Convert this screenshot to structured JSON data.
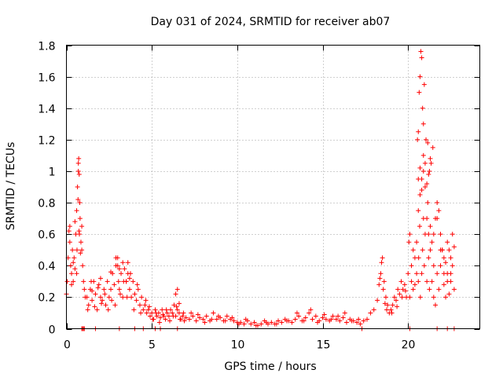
{
  "chart_data": {
    "type": "scatter",
    "title": "Day 031 of 2024, SRMTID for receiver ab07",
    "xlabel": "GPS time / hours",
    "ylabel": "SRMTID / TECUs",
    "xlim": [
      0,
      24.2
    ],
    "ylim": [
      0,
      1.8
    ],
    "xticks": [
      0,
      5,
      10,
      15,
      20
    ],
    "xtick_labels": [
      "0",
      "5",
      "10",
      "15",
      "20"
    ],
    "yticks": [
      0,
      0.2,
      0.4,
      0.6,
      0.8,
      1.0,
      1.2,
      1.4,
      1.6,
      1.8
    ],
    "ytick_labels": [
      "0",
      "0.2",
      "0.4",
      "0.6",
      "0.8",
      "1",
      "1.2",
      "1.4",
      "1.6",
      "1.8"
    ],
    "grid": true,
    "marker": "+",
    "color": "#ff0000",
    "series": [
      {
        "name": "SRMTID",
        "x": [
          0.0,
          0.05,
          0.1,
          0.15,
          0.2,
          0.25,
          0.3,
          0.35,
          0.4,
          0.45,
          0.5,
          0.55,
          0.6,
          0.65,
          0.7,
          0.72,
          0.75,
          0.78,
          0.8,
          0.85,
          0.9,
          0.95,
          1.0,
          1.05,
          1.1,
          0.2,
          0.4,
          0.6,
          0.68,
          0.74,
          0.82,
          0.9,
          0.3,
          0.5,
          0.62,
          0.7,
          0.76,
          1.2,
          1.3,
          1.4,
          1.5,
          1.6,
          1.7,
          1.8,
          1.9,
          2.0,
          2.1,
          2.2,
          2.3,
          2.4,
          2.5,
          2.6,
          2.7,
          2.8,
          2.9,
          3.0,
          3.05,
          3.1,
          3.2,
          3.3,
          3.4,
          3.5,
          3.6,
          3.7,
          3.8,
          3.9,
          4.0,
          4.1,
          4.2,
          4.3,
          4.4,
          4.5,
          1.25,
          1.45,
          1.65,
          1.85,
          2.05,
          2.25,
          2.45,
          2.65,
          2.85,
          3.15,
          3.35,
          3.55,
          3.75,
          3.95,
          4.15,
          4.35,
          2.9,
          3.0,
          3.1,
          3.3,
          3.5,
          3.6,
          3.7,
          1.5,
          2.0,
          2.6,
          4.6,
          4.7,
          4.8,
          4.9,
          5.0,
          5.1,
          5.2,
          5.3,
          5.4,
          5.5,
          5.6,
          5.7,
          5.8,
          5.9,
          6.0,
          6.1,
          6.2,
          6.3,
          6.4,
          6.5,
          6.6,
          6.7,
          6.8,
          6.9,
          7.0,
          4.65,
          4.85,
          5.05,
          5.25,
          5.45,
          5.65,
          5.85,
          6.05,
          6.25,
          6.45,
          6.65,
          6.85,
          6.5,
          6.4,
          6.6,
          7.2,
          7.4,
          7.6,
          7.8,
          8.0,
          8.2,
          8.4,
          8.6,
          8.8,
          9.0,
          9.2,
          9.4,
          9.6,
          9.8,
          10.0,
          7.3,
          7.7,
          8.1,
          8.5,
          8.9,
          9.3,
          9.7,
          10.1,
          10.2,
          10.4,
          10.6,
          10.8,
          11.0,
          11.2,
          11.4,
          11.6,
          11.8,
          12.0,
          12.2,
          12.4,
          12.6,
          12.8,
          13.0,
          13.2,
          10.5,
          11.1,
          11.7,
          12.3,
          12.9,
          13.4,
          13.6,
          13.8,
          14.0,
          14.2,
          14.4,
          14.6,
          14.8,
          15.0,
          15.2,
          15.4,
          15.6,
          15.8,
          16.0,
          16.2,
          16.4,
          16.6,
          16.8,
          17.0,
          17.2,
          13.5,
          13.9,
          14.3,
          14.7,
          15.1,
          15.5,
          15.9,
          16.3,
          16.7,
          17.1,
          17.4,
          17.6,
          17.8,
          18.0,
          18.2,
          18.3,
          18.4,
          18.5,
          18.6,
          18.7,
          18.8,
          18.9,
          19.0,
          19.1,
          19.2,
          19.3,
          19.4,
          19.5,
          19.6,
          19.7,
          19.8,
          19.9,
          18.35,
          18.45,
          18.55,
          18.65,
          18.75,
          19.05,
          19.35,
          19.65,
          19.85,
          20.0,
          20.05,
          20.1,
          20.2,
          20.3,
          20.4,
          20.5,
          20.6,
          20.7,
          20.8,
          20.9,
          21.0,
          21.1,
          21.2,
          21.3,
          21.4,
          21.5,
          21.6,
          21.7,
          21.8,
          21.9,
          22.0,
          22.1,
          22.2,
          22.3,
          22.4,
          22.5,
          22.6,
          22.7,
          20.55,
          20.6,
          20.65,
          20.7,
          20.75,
          20.8,
          20.85,
          20.9,
          20.95,
          21.05,
          21.15,
          21.25,
          21.35,
          21.45,
          20.6,
          20.7,
          20.8,
          20.9,
          21.0,
          21.1,
          21.2,
          21.3,
          20.6,
          20.62,
          20.68,
          20.72,
          20.8,
          20.85,
          20.9,
          20.95,
          21.0,
          21.1,
          21.15,
          21.2,
          21.25,
          21.3,
          21.4,
          21.5,
          21.6,
          21.7,
          21.8,
          21.9,
          22.0,
          22.1,
          22.2,
          22.3,
          22.4,
          22.5,
          22.6,
          20.1,
          20.2,
          20.3,
          20.4,
          20.5,
          21.5,
          21.7,
          21.9,
          22.1,
          22.3,
          22.5,
          22.7,
          0.9,
          0.95,
          1.0,
          1.05,
          1.7,
          3.1,
          4.0,
          4.5,
          5.2,
          5.5,
          6.5,
          17.3,
          20.1,
          21.7,
          22.3,
          22.7
        ],
        "y": [
          0.22,
          0.3,
          0.45,
          0.62,
          0.55,
          0.4,
          0.35,
          0.5,
          0.3,
          0.45,
          0.68,
          0.6,
          0.75,
          0.9,
          1.05,
          1.08,
          0.98,
          0.8,
          0.7,
          0.55,
          0.5,
          0.4,
          0.3,
          0.25,
          0.2,
          0.65,
          0.42,
          0.35,
          0.82,
          0.62,
          0.48,
          0.65,
          0.28,
          0.38,
          0.5,
          1.0,
          0.6,
          0.2,
          0.15,
          0.25,
          0.18,
          0.3,
          0.22,
          0.12,
          0.28,
          0.2,
          0.18,
          0.25,
          0.15,
          0.3,
          0.2,
          0.25,
          0.35,
          0.28,
          0.4,
          0.45,
          0.3,
          0.25,
          0.35,
          0.2,
          0.38,
          0.3,
          0.42,
          0.25,
          0.2,
          0.3,
          0.22,
          0.18,
          0.25,
          0.15,
          0.2,
          0.12,
          0.12,
          0.3,
          0.14,
          0.26,
          0.16,
          0.22,
          0.12,
          0.18,
          0.15,
          0.22,
          0.3,
          0.2,
          0.35,
          0.12,
          0.28,
          0.1,
          0.45,
          0.4,
          0.38,
          0.42,
          0.3,
          0.35,
          0.32,
          0.24,
          0.32,
          0.36,
          0.15,
          0.1,
          0.12,
          0.08,
          0.1,
          0.06,
          0.12,
          0.08,
          0.1,
          0.07,
          0.12,
          0.08,
          0.06,
          0.1,
          0.08,
          0.12,
          0.1,
          0.15,
          0.08,
          0.12,
          0.1,
          0.06,
          0.08,
          0.05,
          0.07,
          0.18,
          0.14,
          0.06,
          0.1,
          0.04,
          0.09,
          0.12,
          0.05,
          0.08,
          0.14,
          0.06,
          0.1,
          0.25,
          0.22,
          0.16,
          0.06,
          0.08,
          0.05,
          0.07,
          0.06,
          0.08,
          0.05,
          0.1,
          0.06,
          0.07,
          0.05,
          0.08,
          0.06,
          0.05,
          0.04,
          0.1,
          0.09,
          0.04,
          0.06,
          0.08,
          0.05,
          0.07,
          0.03,
          0.04,
          0.03,
          0.05,
          0.03,
          0.04,
          0.02,
          0.03,
          0.05,
          0.03,
          0.04,
          0.03,
          0.05,
          0.04,
          0.06,
          0.05,
          0.04,
          0.06,
          0.02,
          0.04,
          0.03,
          0.05,
          0.06,
          0.08,
          0.05,
          0.07,
          0.1,
          0.06,
          0.08,
          0.05,
          0.07,
          0.06,
          0.05,
          0.08,
          0.06,
          0.05,
          0.07,
          0.04,
          0.06,
          0.05,
          0.04,
          0.03,
          0.1,
          0.05,
          0.12,
          0.04,
          0.09,
          0.06,
          0.08,
          0.1,
          0.05,
          0.06,
          0.05,
          0.06,
          0.1,
          0.12,
          0.18,
          0.28,
          0.35,
          0.45,
          0.3,
          0.2,
          0.15,
          0.1,
          0.12,
          0.15,
          0.2,
          0.18,
          0.25,
          0.22,
          0.3,
          0.25,
          0.28,
          0.2,
          0.32,
          0.42,
          0.25,
          0.16,
          0.12,
          0.1,
          0.14,
          0.2,
          0.24,
          0.35,
          0.55,
          0.6,
          0.4,
          0.5,
          0.45,
          0.55,
          0.75,
          0.85,
          0.95,
          1.0,
          0.9,
          0.7,
          0.6,
          0.5,
          0.55,
          0.4,
          0.7,
          0.8,
          0.75,
          0.6,
          0.5,
          0.35,
          0.42,
          0.55,
          0.5,
          0.45,
          0.6,
          0.52,
          1.2,
          1.25,
          1.5,
          1.6,
          1.76,
          1.72,
          1.4,
          1.3,
          1.55,
          1.2,
          1.18,
          1.0,
          1.05,
          1.15,
          0.95,
          1.02,
          0.88,
          1.1,
          1.05,
          0.92,
          0.98,
          1.08,
          0.3,
          0.45,
          0.65,
          0.2,
          0.35,
          0.5,
          0.7,
          0.4,
          0.6,
          0.3,
          0.8,
          0.45,
          0.25,
          0.65,
          0.3,
          0.2,
          0.15,
          0.35,
          0.25,
          0.4,
          0.5,
          0.28,
          0.2,
          0.3,
          0.22,
          0.35,
          0.4,
          0.2,
          0.3,
          0.25,
          0.28,
          0.35,
          0.6,
          0.7,
          0.5,
          0.45,
          0.35,
          0.3,
          0.25,
          0.0,
          0.0,
          0.0,
          0.0,
          0.0,
          0.0,
          0.0,
          0.0,
          0.0,
          0.0,
          0.0,
          0.0,
          0.0,
          0.0,
          0.0,
          0.0
        ]
      }
    ]
  }
}
